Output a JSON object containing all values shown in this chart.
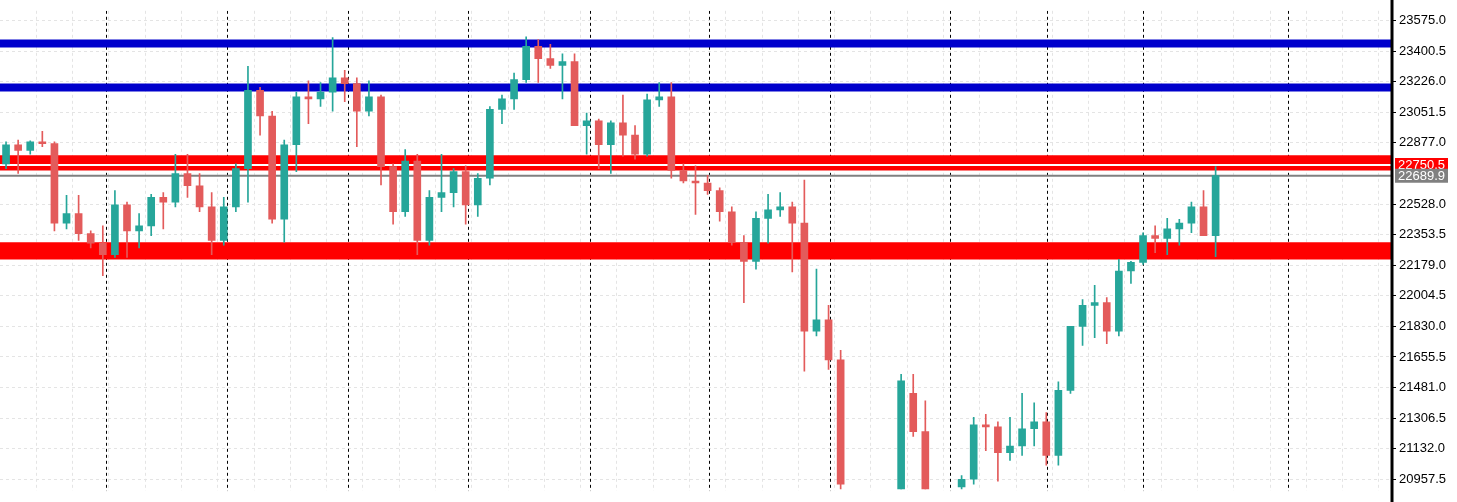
{
  "chart_data": {
    "type": "candlestick",
    "categories": [
      null,
      null,
      null,
      null,
      null,
      null,
      null,
      null,
      null,
      null,
      null,
      null,
      null,
      null,
      null,
      null,
      null,
      null,
      null,
      null,
      null,
      null,
      null,
      null,
      null,
      null,
      null,
      null,
      null,
      null,
      null,
      null,
      null,
      null,
      null,
      null,
      null,
      null,
      null,
      null,
      null,
      null,
      null,
      null,
      null,
      null,
      null,
      null,
      null,
      null,
      null,
      null,
      null,
      null,
      null,
      null,
      null,
      null,
      null,
      null,
      null,
      null,
      null,
      null,
      null,
      null,
      null,
      null,
      null,
      null,
      null,
      null,
      null,
      null,
      null,
      null,
      null,
      null,
      null,
      null,
      null,
      null,
      null,
      null,
      null,
      null,
      null,
      null,
      null,
      null,
      null,
      null,
      null,
      null,
      null,
      null,
      null,
      null,
      null,
      null,
      null,
      null,
      null,
      null,
      null,
      null,
      null,
      null,
      null,
      null,
      null,
      null,
      null,
      null,
      null
    ],
    "ohlc": [
      [
        22757,
        22882,
        22730,
        22866
      ],
      [
        22866,
        22893,
        22702,
        22833
      ],
      [
        22833,
        22888,
        22812,
        22882
      ],
      [
        22882,
        22942,
        22855,
        22872
      ],
      [
        22872,
        22882,
        22375,
        22419
      ],
      [
        22419,
        22577,
        22386,
        22473
      ],
      [
        22473,
        22577,
        22321,
        22359
      ],
      [
        22359,
        22375,
        22277,
        22304
      ],
      [
        22304,
        22403,
        22119,
        22239
      ],
      [
        22239,
        22604,
        22223,
        22523
      ],
      [
        22523,
        22539,
        22223,
        22375
      ],
      [
        22375,
        22473,
        22277,
        22403
      ],
      [
        22403,
        22583,
        22348,
        22566
      ],
      [
        22566,
        22593,
        22386,
        22539
      ],
      [
        22539,
        22812,
        22512,
        22702
      ],
      [
        22702,
        22812,
        22566,
        22632
      ],
      [
        22632,
        22702,
        22484,
        22512
      ],
      [
        22512,
        22593,
        22239,
        22321
      ],
      [
        22321,
        22566,
        22293,
        22512
      ],
      [
        22512,
        22757,
        22484,
        22730
      ],
      [
        22730,
        23313,
        22539,
        23177
      ],
      [
        23177,
        23193,
        22921,
        23030
      ],
      [
        23030,
        23057,
        22419,
        22441
      ],
      [
        22441,
        22893,
        22310,
        22866
      ],
      [
        22866,
        23166,
        22713,
        23139
      ],
      [
        23139,
        23231,
        22986,
        23128
      ],
      [
        23128,
        23221,
        23084,
        23166
      ],
      [
        23166,
        23477,
        23057,
        23248
      ],
      [
        23248,
        23291,
        23112,
        23215
      ],
      [
        23215,
        23248,
        22855,
        23057
      ],
      [
        23057,
        23231,
        23030,
        23139
      ],
      [
        23139,
        23150,
        22637,
        22741
      ],
      [
        22741,
        22757,
        22413,
        22484
      ],
      [
        22484,
        22839,
        22457,
        22773
      ],
      [
        22773,
        22812,
        22239,
        22321
      ],
      [
        22321,
        22604,
        22293,
        22566
      ],
      [
        22566,
        22812,
        22484,
        22593
      ],
      [
        22593,
        22730,
        22512,
        22713
      ],
      [
        22713,
        22746,
        22413,
        22523
      ],
      [
        22523,
        22702,
        22457,
        22675
      ],
      [
        22675,
        23084,
        22637,
        23068
      ],
      [
        23068,
        23150,
        22986,
        23128
      ],
      [
        23128,
        23275,
        23068,
        23237
      ],
      [
        23237,
        23482,
        23221,
        23428
      ],
      [
        23428,
        23466,
        23221,
        23357
      ],
      [
        23357,
        23439,
        23302,
        23319
      ],
      [
        23319,
        23384,
        23128,
        23340
      ],
      [
        23340,
        23384,
        22975,
        22975
      ],
      [
        22975,
        23046,
        22812,
        23002
      ],
      [
        23002,
        23013,
        22730,
        22866
      ],
      [
        22866,
        23002,
        22702,
        22991
      ],
      [
        22991,
        23150,
        22801,
        22921
      ],
      [
        22921,
        22975,
        22784,
        22812
      ],
      [
        22812,
        23155,
        22801,
        23122
      ],
      [
        23122,
        23221,
        23084,
        23139
      ],
      [
        23139,
        23221,
        22675,
        22719
      ],
      [
        22719,
        22757,
        22648,
        22659
      ],
      [
        22659,
        22746,
        22468,
        22648
      ],
      [
        22648,
        22692,
        22583,
        22604
      ],
      [
        22604,
        22620,
        22430,
        22484
      ],
      [
        22484,
        22512,
        22293,
        22310
      ],
      [
        22310,
        22348,
        21966,
        22201
      ],
      [
        22201,
        22484,
        22157,
        22446
      ],
      [
        22446,
        22583,
        22304,
        22495
      ],
      [
        22495,
        22593,
        22457,
        22512
      ],
      [
        22512,
        22539,
        22141,
        22419
      ],
      [
        22419,
        22664,
        21574,
        21803
      ],
      [
        21803,
        22157,
        21775,
        21868
      ],
      [
        21868,
        21950,
        21585,
        21639
      ],
      [
        21639,
        21694,
        20903,
        20930
      ],
      null,
      null,
      null,
      null,
      [
        20903,
        21557,
        20903,
        21519
      ],
      [
        21448,
        21557,
        21203,
        21230
      ],
      [
        21230,
        21405,
        20903,
        20903
      ],
      null,
      null,
      [
        20914,
        20979,
        20903,
        20958
      ],
      [
        20958,
        21312,
        20930,
        21268
      ],
      [
        21268,
        21328,
        21121,
        21257
      ],
      [
        21257,
        21285,
        20947,
        21110
      ],
      [
        21110,
        21312,
        21066,
        21148
      ],
      [
        21148,
        21448,
        21094,
        21246
      ],
      [
        21246,
        21394,
        21148,
        21285
      ],
      [
        21285,
        21339,
        21039,
        21094
      ],
      [
        21094,
        21514,
        21039,
        21465
      ],
      [
        21465,
        21830,
        21448,
        21830
      ],
      [
        21830,
        21983,
        21721,
        21950
      ],
      [
        21950,
        22064,
        21765,
        21966
      ],
      [
        21966,
        21994,
        21732,
        21803
      ],
      [
        21803,
        22212,
        21775,
        22146
      ],
      [
        22146,
        22201,
        22075,
        22195
      ],
      [
        22195,
        22364,
        22184,
        22348
      ],
      [
        22348,
        22403,
        22250,
        22332
      ],
      [
        22332,
        22446,
        22239,
        22386
      ],
      [
        22386,
        22441,
        22293,
        22419
      ],
      [
        22419,
        22539,
        22364,
        22512
      ],
      [
        22512,
        22604,
        22348,
        22348
      ],
      [
        22348,
        22741,
        22228,
        22689.9
      ],
      null,
      null,
      null,
      null,
      null,
      null,
      null,
      null,
      null,
      null,
      null,
      null,
      null,
      null
    ],
    "ylim": [
      20890,
      23630
    ],
    "yticks": [
      {
        "value": 23575,
        "label": "23575.0"
      },
      {
        "value": 23400.5,
        "label": "23400.5"
      },
      {
        "value": 23226,
        "label": "23226.0"
      },
      {
        "value": 23051.5,
        "label": "23051.5"
      },
      {
        "value": 22877,
        "label": "22877.0"
      },
      {
        "value": 22528,
        "label": "22528.0"
      },
      {
        "value": 22353.5,
        "label": "22353.5"
      },
      {
        "value": 22179,
        "label": "22179.0"
      },
      {
        "value": 22004.5,
        "label": "22004.5"
      },
      {
        "value": 21830,
        "label": "21830.0"
      },
      {
        "value": 21655.5,
        "label": "21655.5"
      },
      {
        "value": 21481,
        "label": "21481.0"
      },
      {
        "value": 21306.5,
        "label": "21306.5"
      },
      {
        "value": 21132,
        "label": "21132.0"
      },
      {
        "value": 20957.5,
        "label": "20957.5"
      }
    ],
    "bands": [
      {
        "axis": "y",
        "from": 22719,
        "to": 22806,
        "color": "#ff0000"
      },
      {
        "axis": "y",
        "from": 22212,
        "to": 22310,
        "color": "#ff0000"
      }
    ],
    "ref_lines": [
      {
        "axis": "y",
        "value": 23444,
        "color": "#0000cc"
      },
      {
        "axis": "y",
        "value": 23192,
        "color": "#0000cc"
      },
      {
        "axis": "y",
        "value": 22750.5,
        "label": "22750.5",
        "color": "#ffffff"
      },
      {
        "axis": "y",
        "value": 22689.9,
        "label": "22689.9",
        "color": "#808080"
      }
    ],
    "grid": true,
    "tick_labels": "y"
  }
}
